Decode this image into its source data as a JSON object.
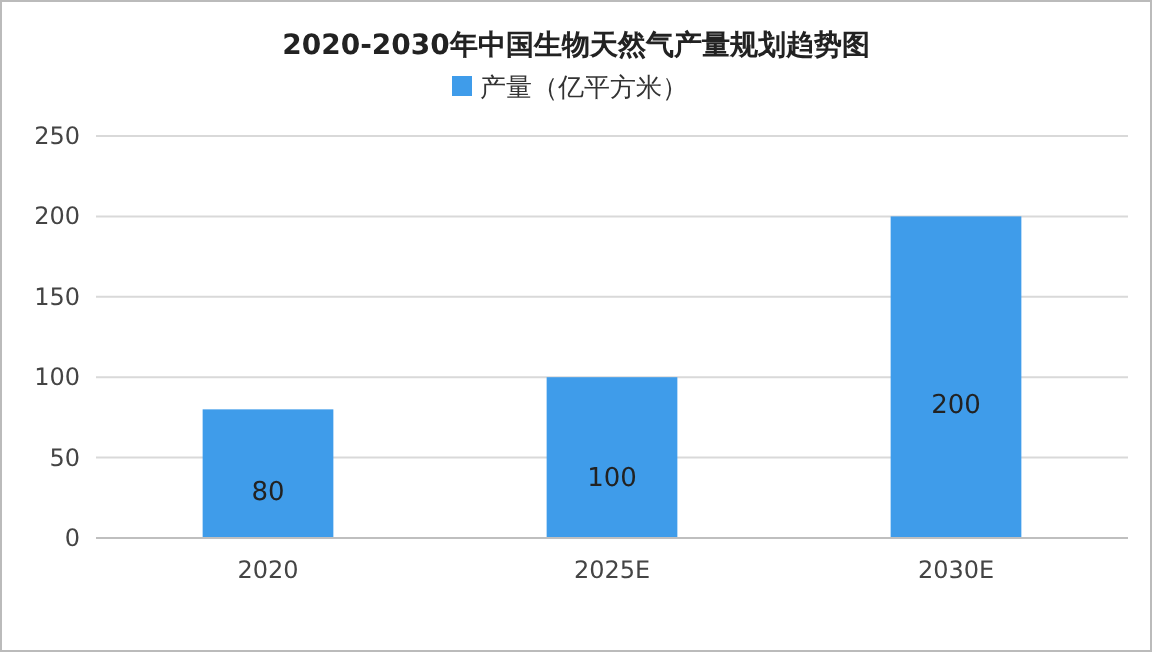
{
  "chart_data": {
    "type": "bar",
    "title": "2020-2030年中国生物天然气产量规划趋势图",
    "categories": [
      "2020",
      "2025E",
      "2030E"
    ],
    "series": [
      {
        "name": "产量（亿平方米）",
        "color": "#3f9cea",
        "values": [
          80,
          100,
          200
        ]
      }
    ],
    "ylim": [
      0,
      250
    ],
    "yticks": [
      0,
      50,
      100,
      150,
      200,
      250
    ],
    "grid": "y",
    "legend": "top",
    "data_labels": true
  }
}
